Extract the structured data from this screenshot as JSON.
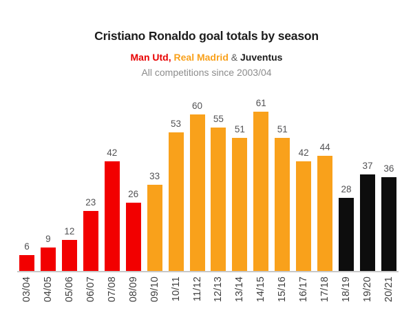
{
  "header": {
    "title": "Cristiano Ronaldo goal totals by season",
    "legend_parts": [
      {
        "text": "Man Utd,",
        "color": "#e80000",
        "bold": true
      },
      {
        "text": " Real Madrid",
        "color": "#f9a11b",
        "bold": true
      },
      {
        "text": " & ",
        "color": "#5a5a5a",
        "bold": false
      },
      {
        "text": "Juventus",
        "color": "#1d1d1d",
        "bold": true
      }
    ],
    "note": "All competitions since 2003/04"
  },
  "chart_data": {
    "type": "bar",
    "title": "Cristiano Ronaldo goal totals by season",
    "subtitle": "Man Utd, Real Madrid & Juventus",
    "note": "All competitions since 2003/04",
    "categories": [
      "03/04",
      "04/05",
      "05/06",
      "06/07",
      "07/08",
      "08/09",
      "09/10",
      "10/11",
      "11/12",
      "12/13",
      "13/14",
      "14/15",
      "15/16",
      "16/17",
      "17/18",
      "18/19",
      "19/20",
      "20/21"
    ],
    "values": [
      6,
      9,
      12,
      23,
      42,
      26,
      33,
      53,
      60,
      55,
      51,
      61,
      51,
      42,
      44,
      28,
      37,
      36
    ],
    "clubs": [
      "Man Utd",
      "Man Utd",
      "Man Utd",
      "Man Utd",
      "Man Utd",
      "Man Utd",
      "Real Madrid",
      "Real Madrid",
      "Real Madrid",
      "Real Madrid",
      "Real Madrid",
      "Real Madrid",
      "Real Madrid",
      "Real Madrid",
      "Real Madrid",
      "Juventus",
      "Juventus",
      "Juventus"
    ],
    "club_colors": {
      "Man Utd": "#f20000",
      "Real Madrid": "#f9a11b",
      "Juventus": "#0d0d0d"
    },
    "xlabel": "",
    "ylabel": "",
    "ylim": [
      0,
      65
    ],
    "value_labels": true,
    "gridlines": false,
    "x_tick_rotation": -90,
    "legend_position": "subtitle",
    "axis_color": "#c8c8c8",
    "value_label_color": "#525254",
    "tick_label_color": "#3c3c3c"
  }
}
